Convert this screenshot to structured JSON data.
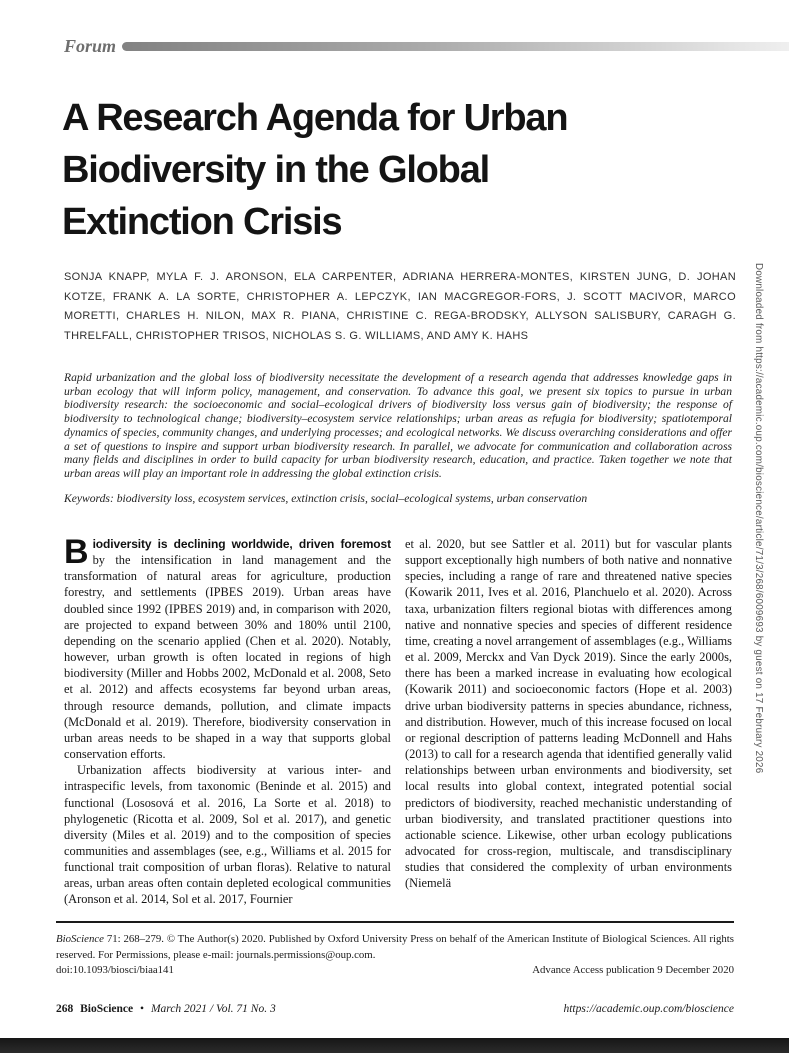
{
  "header": {
    "section_label": "Forum"
  },
  "title": {
    "lines": [
      "A Research Agenda for Urban",
      "Biodiversity in the Global",
      "Extinction Crisis"
    ]
  },
  "authors": "SONJA KNAPP, MYLA F. J. ARONSON, ELA CARPENTER, ADRIANA HERRERA-MONTES, KIRSTEN JUNG, D. JOHAN KOTZE, FRANK A. LA SORTE, CHRISTOPHER A. LEPCZYK, IAN MACGREGOR-FORS, J. SCOTT MACIVOR, MARCO MORETTI, CHARLES H. NILON, MAX R. PIANA, CHRISTINE C. REGA-BRODSKY, ALLYSON SALISBURY, CARAGH G. THRELFALL, CHRISTOPHER TRISOS, NICHOLAS S. G. WILLIAMS, AND AMY K. HAHS",
  "abstract": "Rapid urbanization and the global loss of biodiversity necessitate the development of a research agenda that addresses knowledge gaps in urban ecology that will inform policy, management, and conservation. To advance this goal, we present six topics to pursue in urban biodiversity research: the socioeconomic and social–ecological drivers of biodiversity loss versus gain of biodiversity; the response of biodiversity to technological change; biodiversity–ecosystem service relationships; urban areas as refugia for biodiversity; spatiotemporal dynamics of species, community changes, and underlying processes; and ecological networks. We discuss overarching considerations and offer a set of questions to inspire and support urban biodiversity research. In parallel, we advocate for communication and collaboration across many fields and disciplines in order to build capacity for urban biodiversity research, education, and practice. Taken together we note that urban areas will play an important role in addressing the global extinction crisis.",
  "keywords": "Keywords: biodiversity loss, ecosystem services, extinction crisis, social–ecological systems, urban conservation",
  "body": {
    "dropcap": "B",
    "lead": "iodiversity is declining worldwide, driven foremost",
    "para1_rest": " by the intensification in land management and the transformation of natural areas for agriculture, production forestry, and settlements (IPBES 2019). Urban areas have doubled since 1992 (IPBES 2019) and, in comparison with 2020, are projected to expand between 30% and 180% until 2100, depending on the scenario applied (Chen et al. 2020). Notably, however, urban growth is often located in regions of high biodiversity (Miller and Hobbs 2002, McDonald et al. 2008, Seto et al. 2012) and affects ecosystems far beyond urban areas, through resource demands, pollution, and climate impacts (McDonald et al. 2019). Therefore, biodiversity conservation in urban areas needs to be shaped in a way that supports global conservation efforts.",
    "para2": "Urbanization affects biodiversity at various inter- and intraspecific levels, from taxonomic (Beninde et al. 2015) and functional (Lososová et al. 2016, La Sorte et al. 2018) to phylogenetic (Ricotta et al. 2009, Sol et al. 2017), and genetic diversity (Miles et al. 2019) and to the composition of species communities and assemblages (see, e.g., Williams et al. 2015 for functional trait composition of urban floras). Relative to natural areas, urban areas often contain depleted ecological communities (Aronson et al. 2014, Sol et al. 2017, Fournier",
    "col2": "et al. 2020, but see Sattler et al. 2011) but for vascular plants support exceptionally high numbers of both native and nonnative species, including a range of rare and threatened native species (Kowarik 2011, Ives et al. 2016, Planchuelo et al. 2020). Across taxa, urbanization filters regional biotas with differences among native and nonnative species and species of different residence time, creating a novel arrangement of assemblages (e.g., Williams et al. 2009, Merckx and Van Dyck 2019). Since the early 2000s, there has been a marked increase in evaluating how ecological (Kowarik 2011) and socioeconomic factors (Hope et al. 2003) drive urban biodiversity patterns in species abundance, richness, and distribution. However, much of this increase focused on local or regional description of patterns leading McDonnell and Hahs (2013) to call for a research agenda that identified generally valid relationships between urban environments and biodiversity, set local results into global context, integrated potential social predictors of biodiversity, reached mechanistic understanding of urban biodiversity, and translated practitioner questions into actionable science. Likewise, other urban ecology publications advocated for cross-region, multiscale, and transdisciplinary studies that considered the complexity of urban environments (Niemelä"
  },
  "footnote": {
    "journal_italic": "BioScience",
    "citation_rest": " 71: 268–279. © The Author(s) 2020. Published by Oxford University Press on behalf of the American Institute of Biological Sciences. All rights reserved. For Permissions, please e-mail: journals.permissions@oup.com.",
    "doi": "doi:10.1093/biosci/biaa141",
    "advance_access": "Advance Access publication 9 December 2020"
  },
  "page_footer": {
    "page_number": "268",
    "journal": "BioScience",
    "bullet": "•",
    "issue_info": "March 2021 / Vol. 71 No. 3",
    "url": "https://academic.oup.com/bioscience"
  },
  "sidebar": {
    "download_notice": "Downloaded from https://academic.oup.com/bioscience/article/71/3/268/6009693 by guest on 17 February 2026"
  },
  "colors": {
    "header_bar_start": "#828282",
    "header_bar_end": "#efefef",
    "bottom_bar": "#1e1e1e",
    "muted_text": "#6e6e6e"
  }
}
